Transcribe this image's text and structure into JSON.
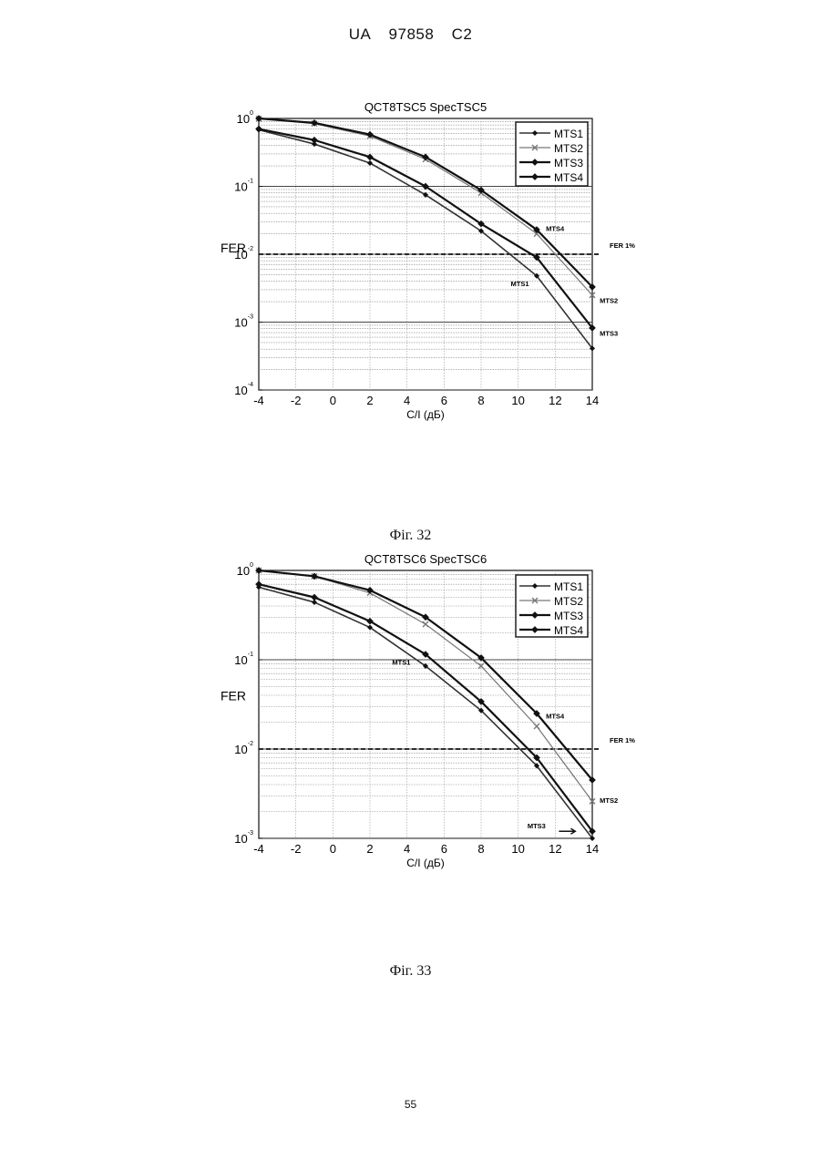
{
  "header": {
    "country": "UA",
    "number": "97858",
    "kind": "C2"
  },
  "page_number": "55",
  "figures": [
    {
      "caption": "Фіг. 32",
      "fer_label": "FER 1%"
    },
    {
      "caption": "Фіг. 33",
      "fer_label": "FER 1%"
    }
  ],
  "chart_data": [
    {
      "type": "line",
      "title": "QCT8TSC5 SpecTSC5",
      "xlabel": "C/I (дБ)",
      "ylabel": "FER",
      "yscale": "log",
      "xlim": [
        -4,
        14
      ],
      "ylim": [
        0.0001,
        1
      ],
      "xticks": [
        "-4",
        "-2",
        "0",
        "2",
        "4",
        "6",
        "8",
        "10",
        "12",
        "14"
      ],
      "yticks": [
        {
          "value": 1,
          "base": "10",
          "exp": "0"
        },
        {
          "value": 0.1,
          "base": "10",
          "exp": "-1"
        },
        {
          "value": 0.01,
          "base": "10",
          "exp": "-2"
        },
        {
          "value": 0.001,
          "base": "10",
          "exp": "-3"
        },
        {
          "value": 0.0001,
          "base": "10",
          "exp": "-4"
        }
      ],
      "grid": true,
      "legend_position": "top-right",
      "reference_line": {
        "y": 0.01,
        "label": "FER 1%"
      },
      "x": [
        -4,
        -1,
        2,
        5,
        8,
        11,
        14
      ],
      "series": [
        {
          "name": "MTS1",
          "values": [
            0.68,
            0.42,
            0.22,
            0.075,
            0.022,
            0.0048,
            0.00041
          ],
          "stroke": "#333333",
          "width": 1.6
        },
        {
          "name": "MTS2",
          "values": [
            0.99,
            0.84,
            0.55,
            0.25,
            0.08,
            0.02,
            0.0025
          ],
          "stroke": "#777777",
          "width": 1.2
        },
        {
          "name": "MTS3",
          "values": [
            0.7,
            0.48,
            0.27,
            0.1,
            0.028,
            0.009,
            0.00082
          ],
          "stroke": "#111111",
          "width": 2.2
        },
        {
          "name": "MTS4",
          "values": [
            1.0,
            0.86,
            0.58,
            0.27,
            0.088,
            0.023,
            0.0033
          ],
          "stroke": "#111111",
          "width": 2.2
        }
      ],
      "annotations": [
        {
          "text": "MTS4",
          "x": 11.5,
          "y": 0.022
        },
        {
          "text": "MTS1",
          "x": 9.6,
          "y": 0.0034
        },
        {
          "text": "MTS2",
          "x": 14.4,
          "y": 0.0019
        },
        {
          "text": "MTS3",
          "x": 14.4,
          "y": 0.00063
        }
      ]
    },
    {
      "type": "line",
      "title": "QCT8TSC6 SpecTSC6",
      "xlabel": "C/I (дБ)",
      "ylabel": "FER",
      "yscale": "log",
      "xlim": [
        -4,
        14
      ],
      "ylim": [
        0.001,
        1
      ],
      "xticks": [
        "-4",
        "-2",
        "0",
        "2",
        "4",
        "6",
        "8",
        "10",
        "12",
        "14"
      ],
      "yticks": [
        {
          "value": 1,
          "base": "10",
          "exp": "0"
        },
        {
          "value": 0.1,
          "base": "10",
          "exp": "-1"
        },
        {
          "value": 0.01,
          "base": "10",
          "exp": "-2"
        },
        {
          "value": 0.001,
          "base": "10",
          "exp": "-3"
        }
      ],
      "grid": true,
      "legend_position": "top-right",
      "reference_line": {
        "y": 0.01,
        "label": "FER 1%"
      },
      "x": [
        -4,
        -1,
        2,
        5,
        8,
        11,
        14
      ],
      "series": [
        {
          "name": "MTS1",
          "values": [
            0.65,
            0.44,
            0.23,
            0.085,
            0.027,
            0.0065,
            0.001
          ],
          "stroke": "#333333",
          "width": 1.6
        },
        {
          "name": "MTS2",
          "values": [
            1.0,
            0.86,
            0.56,
            0.25,
            0.085,
            0.018,
            0.0026
          ],
          "stroke": "#777777",
          "width": 1.2
        },
        {
          "name": "MTS3",
          "values": [
            0.7,
            0.5,
            0.27,
            0.115,
            0.034,
            0.008,
            0.0012
          ],
          "stroke": "#111111",
          "width": 2.2
        },
        {
          "name": "MTS4",
          "values": [
            1.0,
            0.86,
            0.6,
            0.3,
            0.105,
            0.025,
            0.0045
          ],
          "stroke": "#111111",
          "width": 2.2
        }
      ],
      "annotations": [
        {
          "text": "MTS1",
          "x": 3.2,
          "y": 0.088
        },
        {
          "text": "MTS4",
          "x": 11.5,
          "y": 0.022
        },
        {
          "text": "MTS2",
          "x": 14.4,
          "y": 0.0025
        },
        {
          "text": "MTS3",
          "x": 10.5,
          "y": 0.0013
        }
      ]
    }
  ]
}
